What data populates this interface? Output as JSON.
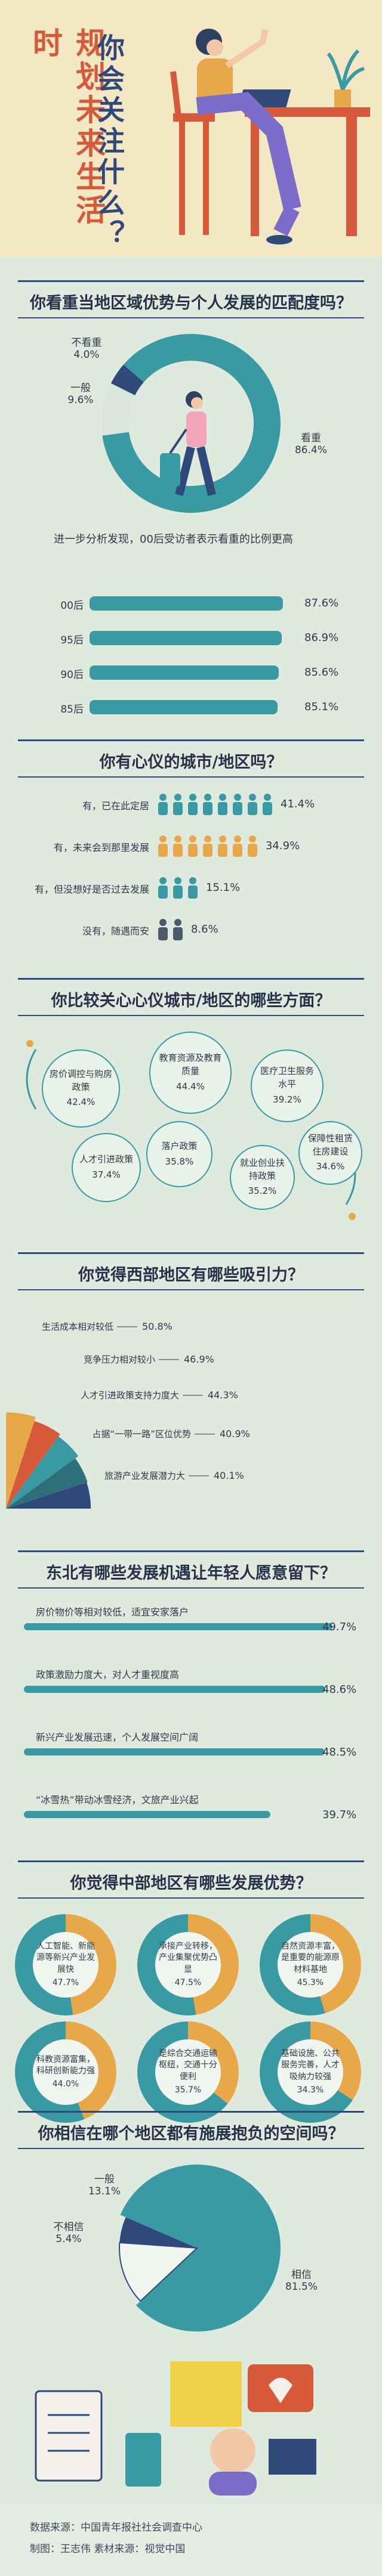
{
  "hero": {
    "title_left": "规划未来生活时",
    "title_right": "你会关注什么？"
  },
  "q1": {
    "title": "你看重当地区域优势与个人发展的匹配度吗？",
    "slices": [
      {
        "label": "看重",
        "value": "86.4%"
      },
      {
        "label": "一般",
        "value": "9.6%"
      },
      {
        "label": "不看重",
        "value": "4.0%"
      }
    ],
    "sub_note": "进一步分析发现，00后受访者表示看重的比例更高",
    "bars": [
      {
        "label": "00后",
        "value": "87.6%"
      },
      {
        "label": "95后",
        "value": "86.9%"
      },
      {
        "label": "90后",
        "value": "85.6%"
      },
      {
        "label": "85后",
        "value": "85.1%"
      }
    ]
  },
  "q2": {
    "title": "你有心仪的城市/地区吗？",
    "rows": [
      {
        "label": "有，已在此定居",
        "value": "41.4%"
      },
      {
        "label": "有，未来会到那里发展",
        "value": "34.9%"
      },
      {
        "label": "有，但没想好是否过去发展",
        "value": "15.1%"
      },
      {
        "label": "没有，随遇而安",
        "value": "8.6%"
      }
    ]
  },
  "q3": {
    "title": "你比较关心心仪城市/地区的哪些方面？",
    "items": [
      {
        "label": "房价调控与购房政策",
        "value": "42.4%"
      },
      {
        "label": "教育资源及教育质量",
        "value": "44.4%"
      },
      {
        "label": "医疗卫生服务水平",
        "value": "39.2%"
      },
      {
        "label": "人才引进政策",
        "value": "37.4%"
      },
      {
        "label": "落户政策",
        "value": "35.8%"
      },
      {
        "label": "就业创业扶持政策",
        "value": "35.2%"
      },
      {
        "label": "保障性租赁住房建设",
        "value": "34.6%"
      }
    ]
  },
  "q4": {
    "title": "你觉得西部地区有哪些吸引力？",
    "items": [
      {
        "label": "生活成本相对较低",
        "value": "50.8%"
      },
      {
        "label": "竞争压力相对较小",
        "value": "46.9%"
      },
      {
        "label": "人才引进政策支持力度大",
        "value": "44.3%"
      },
      {
        "label": "占据“一带一路”区位优势",
        "value": "40.9%"
      },
      {
        "label": "旅游产业发展潜力大",
        "value": "40.1%"
      }
    ]
  },
  "q5": {
    "title": "东北有哪些发展机遇让年轻人愿意留下？",
    "items": [
      {
        "label": "房价物价等相对较低，适宜安家落户",
        "value": "49.7%"
      },
      {
        "label": "政策激励力度大，对人才重视度高",
        "value": "48.6%"
      },
      {
        "label": "新兴产业发展迅速，个人发展空间广阔",
        "value": "48.5%"
      },
      {
        "label": "“冰雪热”带动冰雪经济，文旅产业兴起",
        "value": "39.7%"
      }
    ]
  },
  "q6": {
    "title": "你觉得中部地区有哪些发展优势？",
    "items": [
      {
        "label": "人工智能、新能源等新兴产业发展快",
        "value": "47.7%"
      },
      {
        "label": "承接产业转移，产业集聚优势凸显",
        "value": "47.5%"
      },
      {
        "label": "自然资源丰富，是重要的能源原材料基地",
        "value": "45.3%"
      },
      {
        "label": "科教资源富集，科研创新能力强",
        "value": "44.0%"
      },
      {
        "label": "是综合交通运输枢纽，交通十分便利",
        "value": "35.7%"
      },
      {
        "label": "基础设施、公共服务完善，人才吸纳力较强",
        "value": "34.3%"
      }
    ]
  },
  "q7": {
    "title": "你相信在哪个地区都有施展抱负的空间吗？",
    "slices": [
      {
        "label": "相信",
        "value": "81.5%"
      },
      {
        "label": "一般",
        "value": "13.1%"
      },
      {
        "label": "不相信",
        "value": "5.4%"
      }
    ]
  },
  "footer": {
    "source": "数据来源：中国青年报社社会调查中心",
    "credit": "制图：王志伟  素材来源：视觉中国"
  },
  "colors": {
    "teal": "#3a9aa4",
    "orange": "#e8a84a",
    "navy": "#2f4a7a",
    "red": "#d65a3a"
  },
  "chart_data": [
    {
      "type": "pie",
      "title": "你看重当地区域优势与个人发展的匹配度吗？",
      "categories": [
        "看重",
        "一般",
        "不看重"
      ],
      "values": [
        86.4,
        9.6,
        4.0
      ]
    },
    {
      "type": "bar",
      "title": "进一步分析发现，00后受访者表示看重的比例更高",
      "categories": [
        "00后",
        "95后",
        "90后",
        "85后"
      ],
      "values": [
        87.6,
        86.9,
        85.6,
        85.1
      ]
    },
    {
      "type": "bar",
      "title": "你有心仪的城市/地区吗？",
      "categories": [
        "有，已在此定居",
        "有，未来会到那里发展",
        "有，但没想好是否过去发展",
        "没有，随遇而安"
      ],
      "values": [
        41.4,
        34.9,
        15.1,
        8.6
      ]
    },
    {
      "type": "bar",
      "title": "你比较关心心仪城市/地区的哪些方面？",
      "categories": [
        "房价调控与购房政策",
        "教育资源及教育质量",
        "医疗卫生服务水平",
        "人才引进政策",
        "落户政策",
        "就业创业扶持政策",
        "保障性租赁住房建设"
      ],
      "values": [
        42.4,
        44.4,
        39.2,
        37.4,
        35.8,
        35.2,
        34.6
      ]
    },
    {
      "type": "bar",
      "title": "你觉得西部地区有哪些吸引力？",
      "categories": [
        "生活成本相对较低",
        "竞争压力相对较小",
        "人才引进政策支持力度大",
        "占据“一带一路”区位优势",
        "旅游产业发展潜力大"
      ],
      "values": [
        50.8,
        46.9,
        44.3,
        40.9,
        40.1
      ]
    },
    {
      "type": "bar",
      "title": "东北有哪些发展机遇让年轻人愿意留下？",
      "categories": [
        "房价物价等相对较低，适宜安家落户",
        "政策激励力度大，对人才重视度高",
        "新兴产业发展迅速，个人发展空间广阔",
        "“冰雪热”带动冰雪经济，文旅产业兴起"
      ],
      "values": [
        49.7,
        48.6,
        48.5,
        39.7
      ]
    },
    {
      "type": "bar",
      "title": "你觉得中部地区有哪些发展优势？",
      "categories": [
        "人工智能、新能源等新兴产业发展快",
        "承接产业转移，产业集聚优势凸显",
        "自然资源丰富，是重要的能源原材料基地",
        "科教资源富集，科研创新能力强",
        "是综合交通运输枢纽，交通十分便利",
        "基础设施、公共服务完善，人才吸纳力较强"
      ],
      "values": [
        47.7,
        47.5,
        45.3,
        44.0,
        35.7,
        34.3
      ]
    },
    {
      "type": "pie",
      "title": "你相信在哪个地区都有施展抱负的空间吗？",
      "categories": [
        "相信",
        "一般",
        "不相信"
      ],
      "values": [
        81.5,
        13.1,
        5.4
      ]
    }
  ]
}
